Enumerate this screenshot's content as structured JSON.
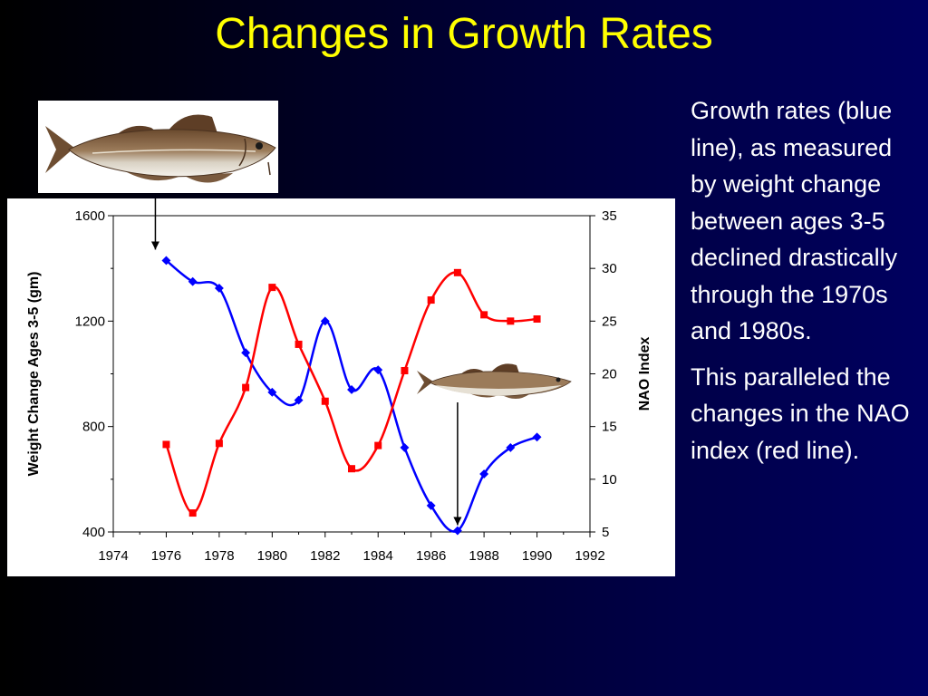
{
  "slide": {
    "title": "Changes in Growth Rates",
    "paragraph_1": "Growth rates (blue line), as measured by weight change between ages 3-5 declined drastically through the 1970s and 1980s.",
    "paragraph_2": "This paralleled the changes in the NAO index (red line).",
    "colors": {
      "title": "#ffff00",
      "text": "#ffffff",
      "weight_series": "#0000ff",
      "nao_series": "#ff0000"
    },
    "images": [
      "cod-fish-illustration",
      "cod-fish-illustration-small"
    ]
  },
  "chart_data": {
    "type": "line",
    "xlabel": "",
    "ylabel": "Weight Change Ages 3-5 (gm)",
    "ylabel_right": "NAO Index",
    "xlim": [
      1974,
      1992
    ],
    "ylim": [
      400,
      1600
    ],
    "ylim_right": [
      5,
      35
    ],
    "x_ticks": [
      "1974",
      "1976",
      "1978",
      "1980",
      "1982",
      "1984",
      "1986",
      "1988",
      "1990",
      "1992"
    ],
    "y_ticks": [
      "1600",
      "1200",
      "800",
      "400"
    ],
    "y_ticks_right": [
      "35",
      "30",
      "25",
      "20",
      "15",
      "10",
      "5"
    ],
    "grid": false,
    "series": [
      {
        "axis": "left",
        "color": "#0000ff",
        "marker": "diamond",
        "x": [
          1976,
          1977,
          1978,
          1979,
          1980,
          1981,
          1982,
          1983,
          1984,
          1985,
          1986,
          1987,
          1988,
          1989,
          1990
        ],
        "values": [
          1430,
          1350,
          1325,
          1080,
          930,
          900,
          1200,
          940,
          1015,
          720,
          500,
          405,
          620,
          720,
          760
        ]
      },
      {
        "axis": "right",
        "color": "#ff0000",
        "marker": "square",
        "x": [
          1976,
          1977,
          1978,
          1979,
          1980,
          1981,
          1982,
          1983,
          1984,
          1985,
          1986,
          1987,
          1988,
          1989,
          1990
        ],
        "values": [
          13.3,
          6.8,
          13.4,
          18.7,
          28.2,
          22.8,
          17.4,
          11.0,
          13.2,
          20.3,
          27.0,
          29.6,
          25.6,
          25.0,
          25.2
        ]
      }
    ],
    "annotations": [
      "arrow-from-large-fish-to-1976-point",
      "arrow-from-small-fish-to-1987-point"
    ]
  }
}
